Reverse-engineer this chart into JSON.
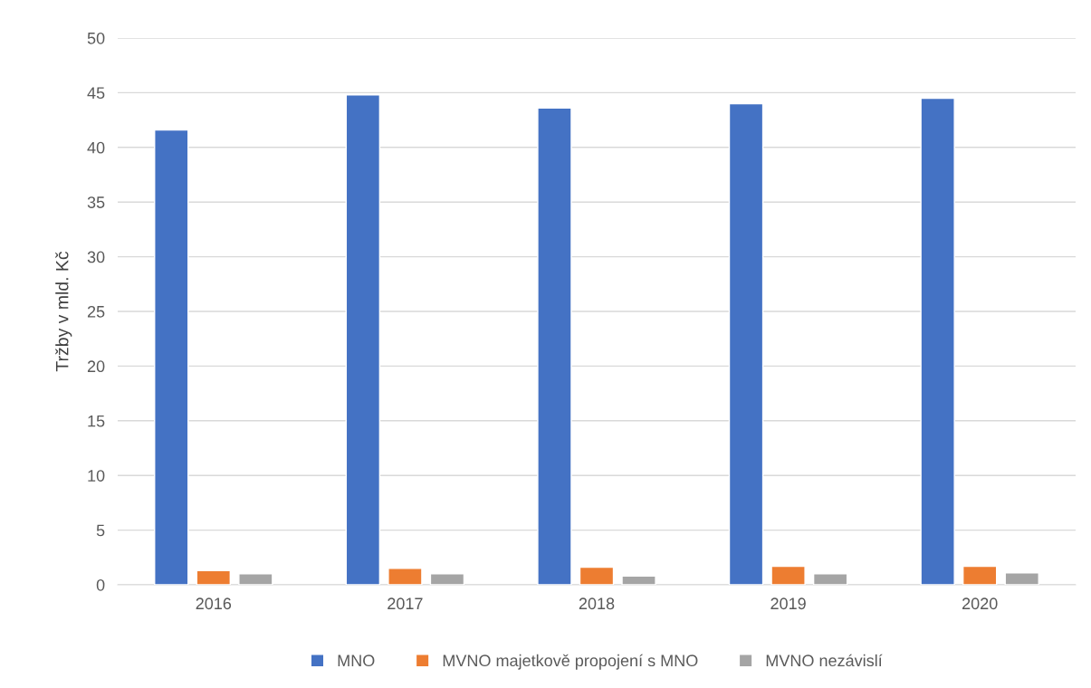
{
  "chart_data": {
    "type": "bar",
    "ylabel": "Tržby v mld. Kč",
    "categories": [
      "2016",
      "2017",
      "2018",
      "2019",
      "2020"
    ],
    "series": [
      {
        "name": "MNO",
        "color": "#4472c4",
        "values": [
          41.6,
          44.8,
          43.6,
          44.0,
          44.5
        ]
      },
      {
        "name": "MVNO majetkově propojení s MNO",
        "color": "#ed7d31",
        "values": [
          1.3,
          1.5,
          1.6,
          1.7,
          1.7
        ]
      },
      {
        "name": "MVNO nezávislí",
        "color": "#a5a5a5",
        "values": [
          1.0,
          1.0,
          0.8,
          1.0,
          1.1
        ]
      }
    ],
    "ylim": [
      0,
      50
    ],
    "yticks": [
      0,
      5,
      10,
      15,
      20,
      25,
      30,
      35,
      40,
      45,
      50
    ],
    "grid": "y",
    "legend": "bottom"
  }
}
